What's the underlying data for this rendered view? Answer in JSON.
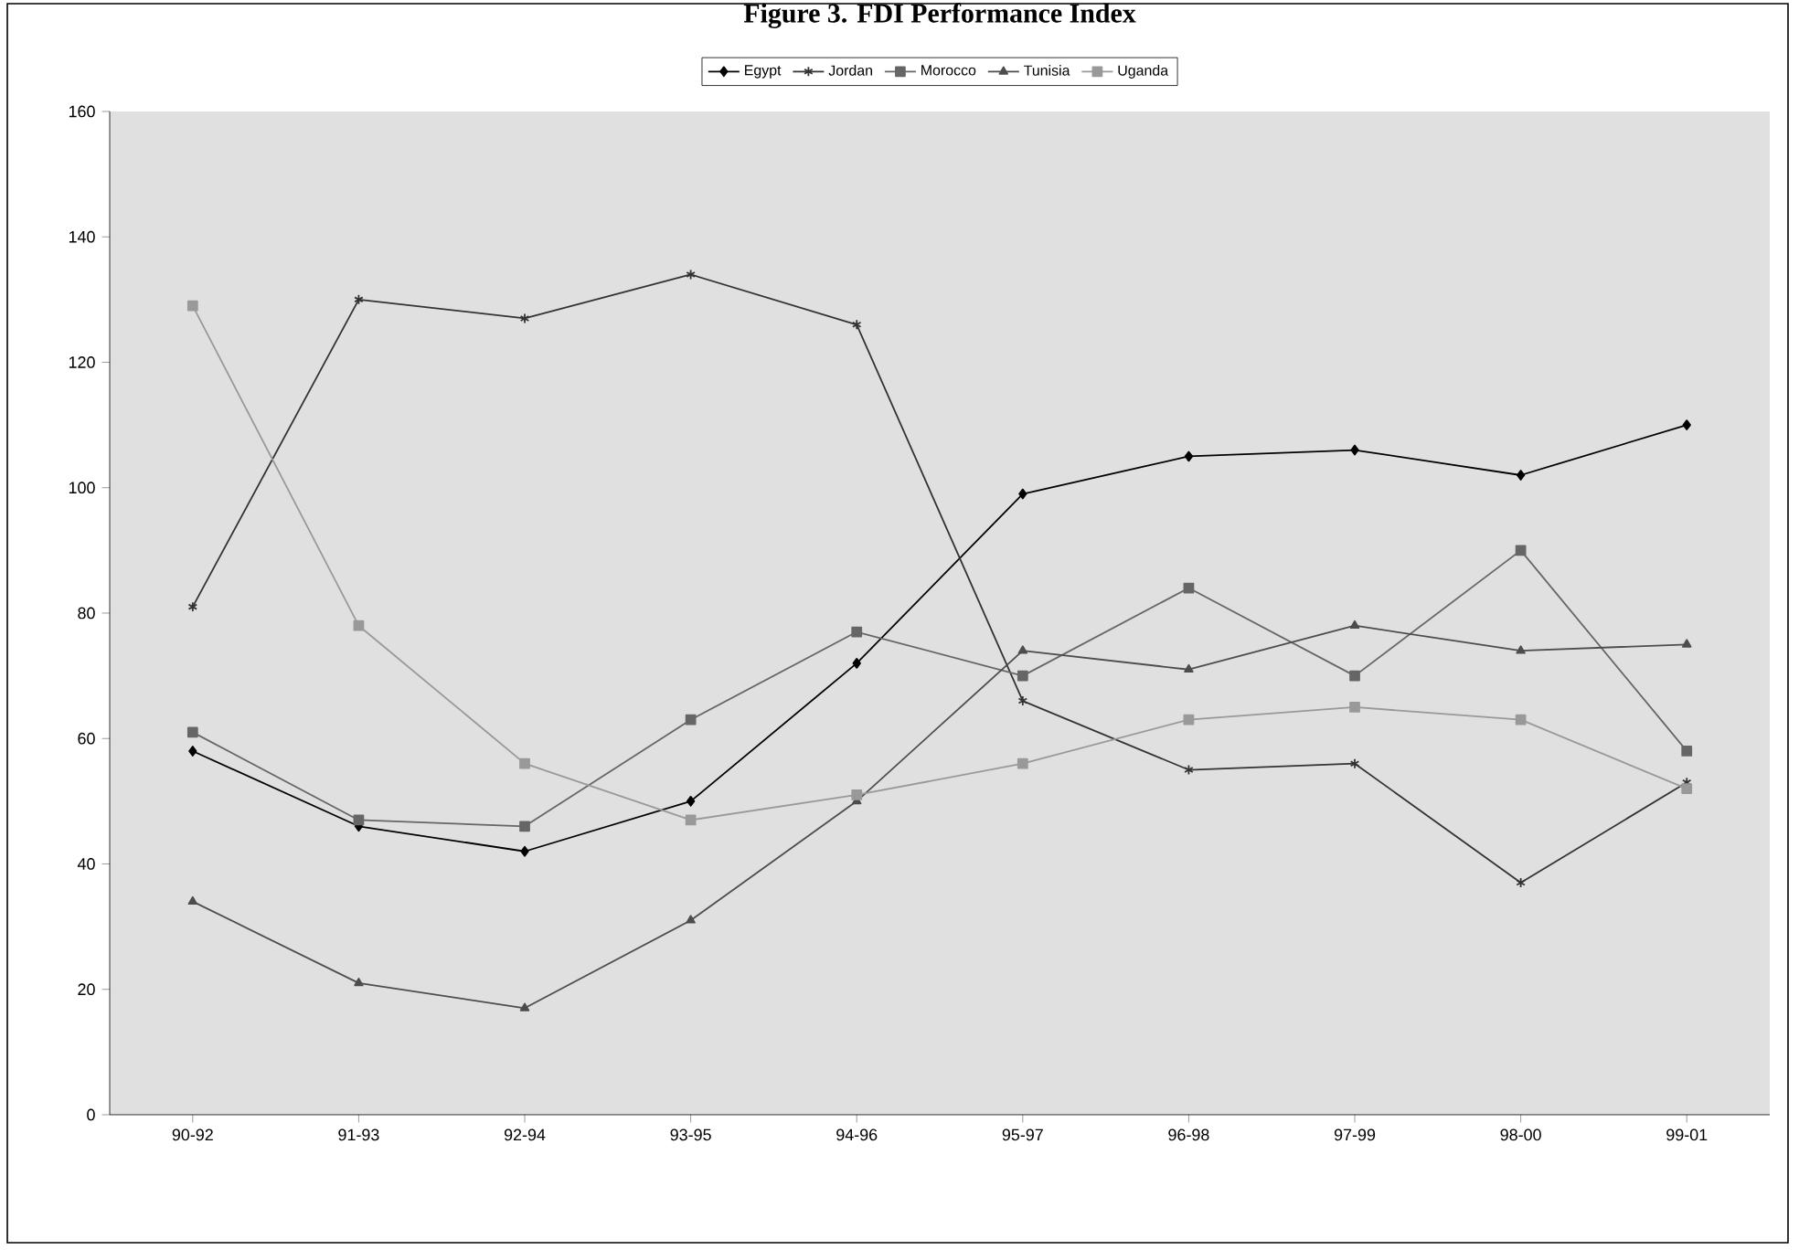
{
  "chart_data": {
    "type": "line",
    "title": "Figure 3. FDI Performance Index",
    "categories": [
      "90-92",
      "91-93",
      "92-94",
      "93-95",
      "94-96",
      "95-97",
      "96-98",
      "97-99",
      "98-00",
      "99-01"
    ],
    "series": [
      {
        "name": "Egypt",
        "color": "#000000",
        "marker": "diamond",
        "values": [
          58,
          46,
          42,
          50,
          72,
          99,
          105,
          106,
          102,
          110
        ]
      },
      {
        "name": "Jordan",
        "color": "#333333",
        "marker": "cross",
        "values": [
          81,
          130,
          127,
          134,
          126,
          66,
          55,
          56,
          37,
          53
        ]
      },
      {
        "name": "Morocco",
        "color": "#666666",
        "marker": "square",
        "values": [
          61,
          47,
          46,
          63,
          77,
          70,
          84,
          70,
          90,
          58
        ]
      },
      {
        "name": "Tunisia",
        "color": "#4d4d4d",
        "marker": "triangle",
        "values": [
          34,
          21,
          17,
          31,
          50,
          74,
          71,
          78,
          74,
          75
        ]
      },
      {
        "name": "Uganda",
        "color": "#999999",
        "marker": "square",
        "values": [
          129,
          78,
          56,
          47,
          51,
          56,
          63,
          65,
          63,
          52
        ]
      }
    ],
    "ylim": [
      0,
      160
    ],
    "yticks": [
      0,
      20,
      40,
      60,
      80,
      100,
      120,
      140,
      160
    ],
    "grid": false,
    "legend": "top"
  }
}
